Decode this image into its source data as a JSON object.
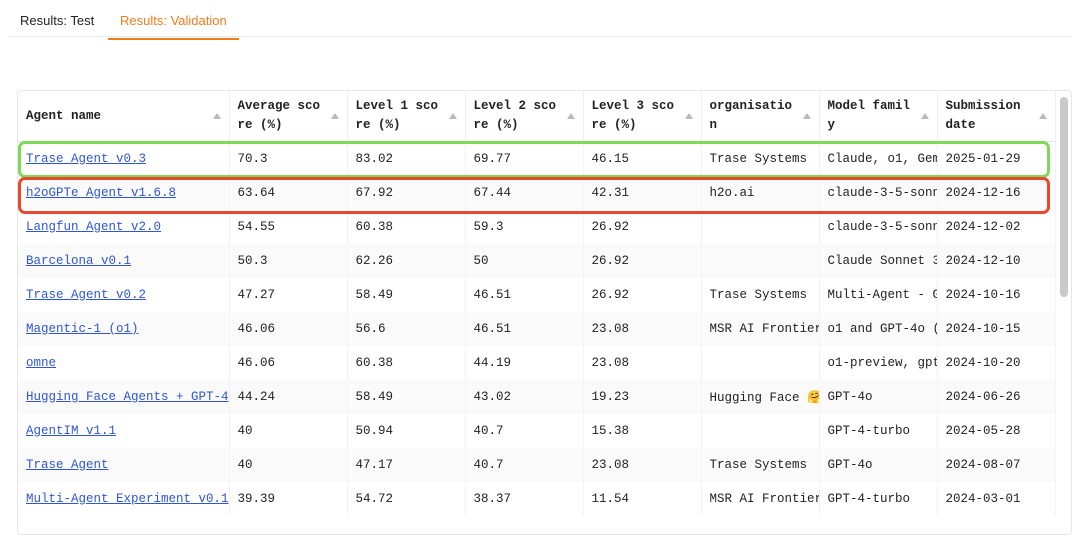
{
  "tabs": [
    "Results: Test",
    "Results: Validation"
  ],
  "table": {
    "headers": [
      "Agent name",
      "Average score (%)",
      "Level 1 score (%)",
      "Level 2 score (%)",
      "Level 3 score (%)",
      "organisation",
      "Model family",
      "Submission date"
    ],
    "rows": [
      [
        "Trase Agent v0.3",
        70.3,
        83.02,
        69.77,
        46.15,
        "Trase Systems",
        "Claude, o1, Gem",
        "2025-01-29"
      ],
      [
        "h2oGPTe Agent v1.6.8",
        63.64,
        67.92,
        67.44,
        42.31,
        "h2o.ai",
        "claude-3-5-sonn",
        "2024-12-16"
      ],
      [
        "Langfun Agent v2.0",
        54.55,
        60.38,
        59.3,
        26.92,
        null,
        "claude-3-5-sonn",
        "2024-12-02"
      ],
      [
        "Barcelona v0.1",
        50.3,
        62.26,
        50,
        26.92,
        null,
        "Claude Sonnet 3",
        "2024-12-10"
      ],
      [
        "Trase Agent v0.2",
        47.27,
        58.49,
        46.51,
        26.92,
        "Trase Systems",
        "Multi-Agent - G",
        "2024-10-16"
      ],
      [
        "Magentic-1 (o1)",
        46.06,
        56.6,
        46.51,
        23.08,
        "MSR AI Frontier",
        "o1 and GPT-4o (",
        "2024-10-15"
      ],
      [
        "omne",
        46.06,
        60.38,
        44.19,
        23.08,
        null,
        "o1-preview, gpt",
        "2024-10-20"
      ],
      [
        "Hugging Face Agents + GPT-4",
        44.24,
        58.49,
        43.02,
        19.23,
        "Hugging Face 🤗",
        "GPT-4o",
        "2024-06-26"
      ],
      [
        "AgentIM v1.1",
        40,
        50.94,
        40.7,
        15.38,
        null,
        "GPT-4-turbo",
        "2024-05-28"
      ],
      [
        "Trase Agent",
        40,
        47.17,
        40.7,
        23.08,
        "Trase Systems",
        "GPT-4o",
        "2024-08-07"
      ],
      [
        "Multi-Agent Experiment v0.1",
        39.39,
        54.72,
        38.37,
        11.54,
        "MSR AI Frontier",
        "GPT-4-turbo",
        "2024-03-01"
      ]
    ]
  }
}
